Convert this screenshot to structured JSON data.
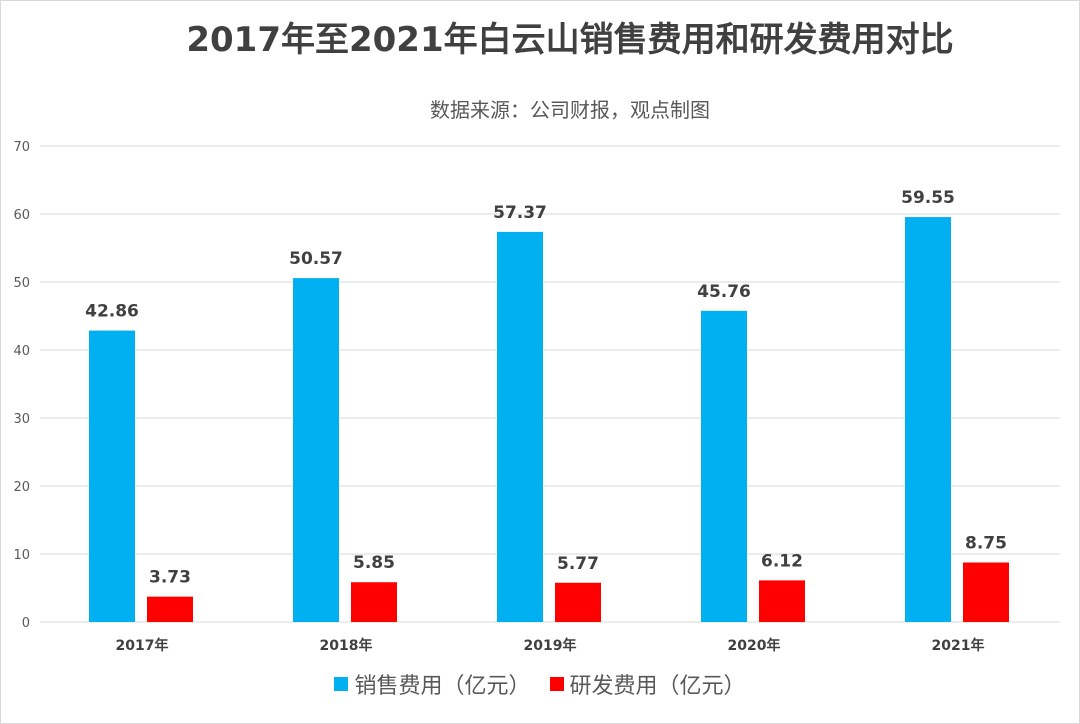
{
  "chart_data": {
    "type": "bar",
    "title": "2017年至2021年白云山销售费用和研发费用对比",
    "subtitle": "数据来源：公司财报，观点制图",
    "categories": [
      "2017年",
      "2018年",
      "2019年",
      "2020年",
      "2021年"
    ],
    "series": [
      {
        "name": "销售费用（亿元）",
        "color": "#00B0F0",
        "values": [
          42.86,
          50.57,
          57.37,
          45.76,
          59.55
        ]
      },
      {
        "name": "研发费用（亿元）",
        "color": "#FF0000",
        "values": [
          3.73,
          5.85,
          5.77,
          6.12,
          8.75
        ]
      }
    ],
    "ylim": [
      0,
      70
    ],
    "yticks": [
      0,
      10,
      20,
      30,
      40,
      50,
      60,
      70
    ],
    "grid": true,
    "legend": "bottom",
    "data_labels": true
  }
}
